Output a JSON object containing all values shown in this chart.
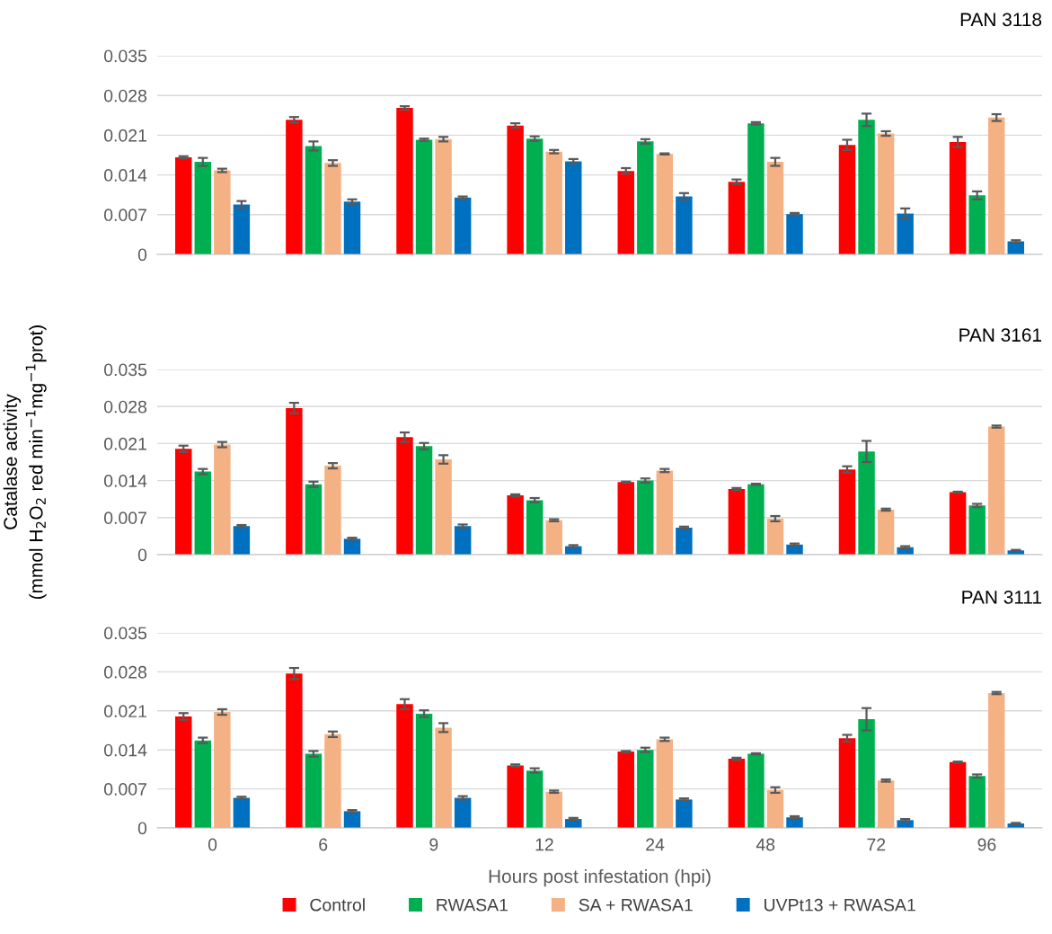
{
  "chart_data": [
    {
      "type": "bar",
      "title": "PAN 3118",
      "categories": [
        "0",
        "6",
        "9",
        "12",
        "24",
        "48",
        "72",
        "96"
      ],
      "ylim": [
        0,
        0.035
      ],
      "yticks": [
        0,
        0.007,
        0.014,
        0.021,
        0.028,
        0.035
      ],
      "grid": "y",
      "tick_labels": "y",
      "series": [
        {
          "color": "#ff0000",
          "values": [
            0.0171,
            0.0237,
            0.0258,
            0.0227,
            0.0147,
            0.0128,
            0.0193,
            0.0198
          ],
          "errors": [
            0.0002,
            0.0005,
            0.0003,
            0.0004,
            0.0005,
            0.0004,
            0.0009,
            0.0009
          ]
        },
        {
          "color": "#00b050",
          "values": [
            0.0163,
            0.0191,
            0.0202,
            0.0204,
            0.0199,
            0.0231,
            0.0237,
            0.0104
          ],
          "errors": [
            0.0007,
            0.0008,
            0.0002,
            0.0004,
            0.0004,
            0.0002,
            0.0011,
            0.0007
          ]
        },
        {
          "color": "#f4b183",
          "values": [
            0.0148,
            0.0161,
            0.0203,
            0.0181,
            0.0177,
            0.0163,
            0.0213,
            0.0241
          ],
          "errors": [
            0.0003,
            0.0005,
            0.0004,
            0.0003,
            0.0001,
            0.0007,
            0.0004,
            0.0006
          ]
        },
        {
          "color": "#0070c0",
          "values": [
            0.0088,
            0.0093,
            0.01,
            0.0164,
            0.0102,
            0.0071,
            0.0072,
            0.0023
          ],
          "errors": [
            0.0006,
            0.0004,
            0.0002,
            0.0004,
            0.0006,
            0.0002,
            0.0009,
            0.0002
          ]
        }
      ]
    },
    {
      "type": "bar",
      "title": "PAN 3161",
      "ylabel": "Catalase activity\n(mmol H$_{2}$O$_{2}$ red min$^{−1}$mg$^{−1}$prot)",
      "categories": [
        "0",
        "6",
        "9",
        "12",
        "24",
        "48",
        "72",
        "96"
      ],
      "ylim": [
        0,
        0.035
      ],
      "yticks": [
        0,
        0.007,
        0.014,
        0.021,
        0.028,
        0.035
      ],
      "grid": "y",
      "tick_labels": "y",
      "series": [
        {
          "color": "#ff0000",
          "values": [
            0.02,
            0.0277,
            0.0222,
            0.0112,
            0.0137,
            0.0124,
            0.0161,
            0.0118
          ],
          "errors": [
            0.0006,
            0.001,
            0.0009,
            0.0002,
            0.0001,
            0.0002,
            0.0006,
            0.0001
          ]
        },
        {
          "color": "#00b050",
          "values": [
            0.0157,
            0.0133,
            0.0205,
            0.0103,
            0.014,
            0.0133,
            0.0195,
            0.0093
          ],
          "errors": [
            0.0005,
            0.0005,
            0.0006,
            0.0004,
            0.0004,
            0.0001,
            0.002,
            0.0003
          ]
        },
        {
          "color": "#f4b183",
          "values": [
            0.0208,
            0.0168,
            0.018,
            0.0065,
            0.0159,
            0.0068,
            0.0085,
            0.0242
          ],
          "errors": [
            0.0005,
            0.0005,
            0.0008,
            0.0002,
            0.0003,
            0.0005,
            0.0002,
            0.0002
          ]
        },
        {
          "color": "#0070c0",
          "values": [
            0.0054,
            0.003,
            0.0054,
            0.0016,
            0.0051,
            0.0019,
            0.0014,
            0.0008
          ],
          "errors": [
            0.0002,
            0.0002,
            0.0003,
            0.0002,
            0.0002,
            0.0002,
            0.0002,
            0.0001
          ]
        }
      ]
    },
    {
      "type": "bar",
      "title": "PAN 3111",
      "xlabel": "Hours post infestation (hpi)",
      "categories": [
        "0",
        "6",
        "9",
        "12",
        "24",
        "48",
        "72",
        "96"
      ],
      "ylim": [
        0,
        0.035
      ],
      "yticks": [
        0,
        0.007,
        0.014,
        0.021,
        0.028,
        0.035
      ],
      "grid": "y",
      "legend": "bottom",
      "series": [
        {
          "name": "Control",
          "color": "#ff0000",
          "values": [
            0.02,
            0.0277,
            0.0222,
            0.0112,
            0.0137,
            0.0124,
            0.0161,
            0.0118
          ],
          "errors": [
            0.0006,
            0.001,
            0.0009,
            0.0002,
            0.0001,
            0.0002,
            0.0006,
            0.0001
          ]
        },
        {
          "name": "RWASA1",
          "color": "#00b050",
          "values": [
            0.0157,
            0.0133,
            0.0205,
            0.0103,
            0.014,
            0.0133,
            0.0195,
            0.0093
          ],
          "errors": [
            0.0005,
            0.0005,
            0.0006,
            0.0004,
            0.0004,
            0.0001,
            0.002,
            0.0003
          ]
        },
        {
          "name": "SA + RWASA1",
          "color": "#f4b183",
          "values": [
            0.0208,
            0.0168,
            0.018,
            0.0065,
            0.0159,
            0.0068,
            0.0085,
            0.0242
          ],
          "errors": [
            0.0005,
            0.0005,
            0.0008,
            0.0002,
            0.0003,
            0.0005,
            0.0002,
            0.0002
          ]
        },
        {
          "name": "UVPt13 + RWASA1",
          "color": "#0070c0",
          "values": [
            0.0054,
            0.003,
            0.0054,
            0.0016,
            0.0051,
            0.0019,
            0.0014,
            0.0008
          ],
          "errors": [
            0.0002,
            0.0002,
            0.0003,
            0.0002,
            0.0002,
            0.0002,
            0.0002,
            0.0001
          ]
        }
      ]
    }
  ]
}
